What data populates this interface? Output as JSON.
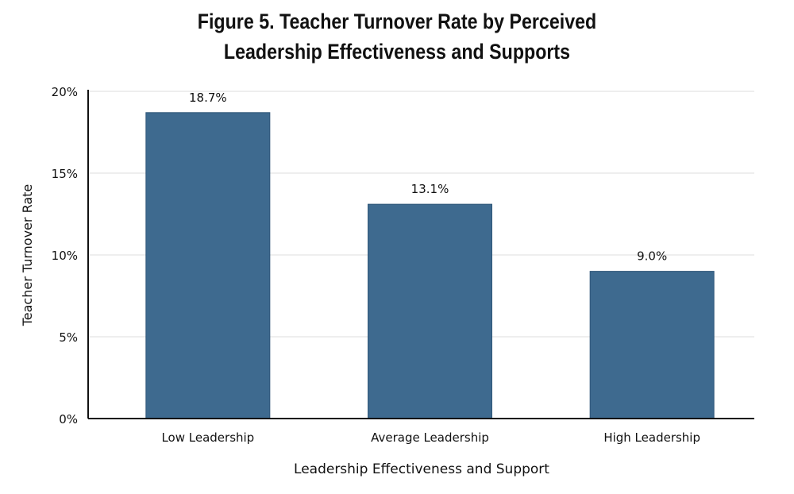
{
  "chart_data": {
    "type": "bar",
    "title": [
      "Figure 5. Teacher Turnover Rate by Perceived",
      "Leadership Effectiveness and Supports"
    ],
    "categories": [
      "Low Leadership",
      "Average Leadership",
      "High Leadership"
    ],
    "values": [
      18.7,
      13.1,
      9.0
    ],
    "data_labels": [
      "18.7%",
      "13.1%",
      "9.0%"
    ],
    "xlabel": "Leadership Effectiveness and Support",
    "ylabel": "Teacher Turnover Rate",
    "ylim": [
      0,
      20
    ],
    "yticks": [
      0,
      5,
      10,
      15,
      20
    ],
    "ytick_labels": [
      "0%",
      "5%",
      "10%",
      "15%",
      "20%"
    ],
    "grid": true,
    "bar_color": "#3e6a8f"
  }
}
